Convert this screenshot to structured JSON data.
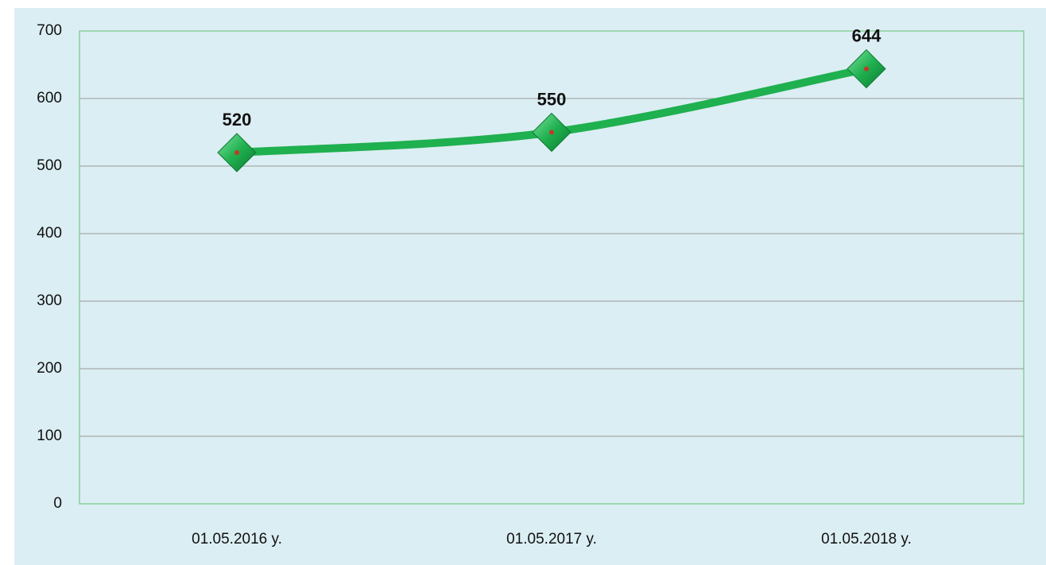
{
  "chart_data": {
    "type": "line",
    "categories": [
      "01.05.2016 y.",
      "01.05.2017 y.",
      "01.05.2018 y."
    ],
    "series": [
      {
        "color": "#1fb04f",
        "values": [
          520,
          550,
          644
        ]
      }
    ],
    "ylim": [
      0,
      700
    ],
    "yticks": [
      0,
      100,
      200,
      300,
      400,
      500,
      600,
      700
    ],
    "grid": true
  }
}
